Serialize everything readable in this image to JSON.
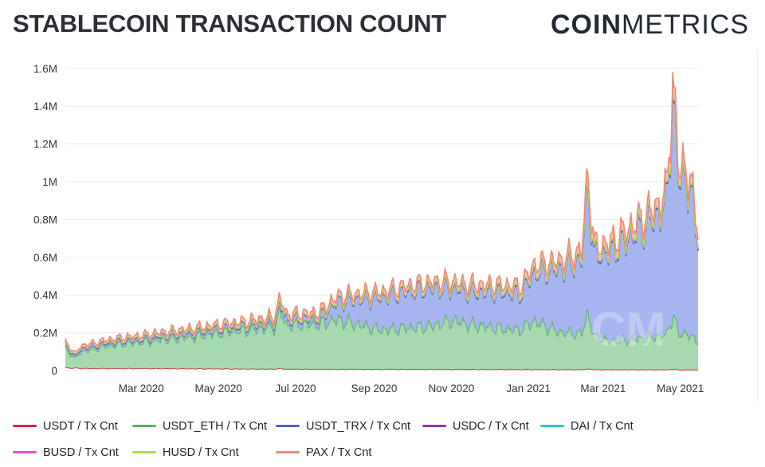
{
  "header": {
    "title": "STABLECOIN TRANSACTION COUNT",
    "brand_bold": "COIN",
    "brand_light": "METRICS"
  },
  "colors": {
    "USDT": "#d7263d",
    "USDT_ETH": "#52b45c",
    "USDT_TRX": "#4b63d8",
    "USDC": "#9b2fb8",
    "DAI": "#2cc4c4",
    "BUSD": "#e84fd0",
    "HUSD": "#a9de3a",
    "PAX": "#f08a78",
    "fill_eth": "#9fd6a8",
    "fill_trx": "#9fb0ee",
    "fill_pax": "#f3b7aa"
  },
  "legend": [
    {
      "key": "USDT",
      "label": "USDT / Tx Cnt"
    },
    {
      "key": "USDT_ETH",
      "label": "USDT_ETH / Tx Cnt"
    },
    {
      "key": "USDT_TRX",
      "label": "USDT_TRX / Tx Cnt"
    },
    {
      "key": "USDC",
      "label": "USDC / Tx Cnt"
    },
    {
      "key": "DAI",
      "label": "DAI / Tx Cnt"
    },
    {
      "key": "BUSD",
      "label": "BUSD / Tx Cnt"
    },
    {
      "key": "HUSD",
      "label": "HUSD / Tx Cnt"
    },
    {
      "key": "PAX",
      "label": "PAX / Tx Cnt"
    }
  ],
  "chart_data": {
    "type": "area",
    "stacked": true,
    "title": "STABLECOIN TRANSACTION COUNT",
    "xlabel": "",
    "ylabel": "",
    "ylim": [
      0,
      1650000
    ],
    "y_ticks": [
      {
        "value": 0,
        "label": "0"
      },
      {
        "value": 200000,
        "label": "0.2M"
      },
      {
        "value": 400000,
        "label": "0.4M"
      },
      {
        "value": 600000,
        "label": "0.6M"
      },
      {
        "value": 800000,
        "label": "0.8M"
      },
      {
        "value": 1000000,
        "label": "1M"
      },
      {
        "value": 1200000,
        "label": "1.2M"
      },
      {
        "value": 1400000,
        "label": "1.4M"
      },
      {
        "value": 1600000,
        "label": "1.6M"
      }
    ],
    "x_range_days": [
      0,
      500
    ],
    "x_ticks": [
      {
        "day": 60,
        "label": "Mar 2020"
      },
      {
        "day": 121,
        "label": "May 2020"
      },
      {
        "day": 182,
        "label": "Jul 2020"
      },
      {
        "day": 244,
        "label": "Sep 2020"
      },
      {
        "day": 305,
        "label": "Nov 2020"
      },
      {
        "day": 366,
        "label": "Jan 2021"
      },
      {
        "day": 425,
        "label": "Mar 2021"
      },
      {
        "day": 486,
        "label": "May 2021"
      }
    ],
    "grid": true,
    "legend_position": "bottom",
    "watermark": "CM",
    "series": [
      {
        "name": "USDT / Tx Cnt",
        "key": "USDT",
        "x": [
          0,
          20,
          60,
          120,
          200,
          300,
          400,
          500
        ],
        "values": [
          15000,
          12000,
          12000,
          10000,
          8000,
          7000,
          6000,
          5000
        ]
      },
      {
        "name": "USDT_ETH / Tx Cnt",
        "key": "USDT_ETH",
        "x": [
          0,
          8,
          12,
          30,
          45,
          60,
          80,
          100,
          120,
          140,
          160,
          180,
          200,
          215,
          230,
          250,
          270,
          290,
          305,
          320,
          340,
          360,
          370,
          390,
          410,
          430,
          450,
          470,
          490,
          500
        ],
        "values": [
          100000,
          50000,
          85000,
          115000,
          130000,
          140000,
          155000,
          170000,
          190000,
          205000,
          220000,
          235000,
          240000,
          265000,
          240000,
          210000,
          220000,
          230000,
          260000,
          240000,
          220000,
          210000,
          260000,
          200000,
          190000,
          150000,
          160000,
          180000,
          195000,
          150000
        ]
      },
      {
        "name": "USDT_TRX / Tx Cnt",
        "key": "USDT_TRX",
        "x": [
          0,
          8,
          12,
          30,
          45,
          60,
          80,
          100,
          120,
          140,
          160,
          180,
          200,
          215,
          230,
          250,
          270,
          290,
          305,
          320,
          340,
          360,
          370,
          390,
          410,
          430,
          450,
          470,
          490,
          500
        ],
        "values": [
          20000,
          10000,
          15000,
          15000,
          15000,
          15000,
          20000,
          20000,
          20000,
          20000,
          25000,
          30000,
          30000,
          90000,
          130000,
          170000,
          190000,
          200000,
          170000,
          170000,
          190000,
          190000,
          250000,
          330000,
          400000,
          470000,
          560000,
          650000,
          850000,
          570000
        ]
      },
      {
        "name": "USDC / Tx Cnt",
        "key": "USDC",
        "x": [
          0,
          250,
          500
        ],
        "values": [
          3000,
          4000,
          6000
        ]
      },
      {
        "name": "DAI / Tx Cnt",
        "key": "DAI",
        "x": [
          0,
          250,
          500
        ],
        "values": [
          2000,
          2000,
          3000
        ]
      },
      {
        "name": "BUSD / Tx Cnt",
        "key": "BUSD",
        "x": [
          0,
          250,
          500
        ],
        "values": [
          1000,
          2000,
          3000
        ]
      },
      {
        "name": "HUSD / Tx Cnt",
        "key": "HUSD",
        "x": [
          0,
          250,
          500
        ],
        "values": [
          500,
          1000,
          2000
        ]
      },
      {
        "name": "PAX / Tx Cnt",
        "key": "PAX",
        "x": [
          0,
          100,
          200,
          300,
          400,
          500
        ],
        "values": [
          10000,
          15000,
          20000,
          25000,
          35000,
          45000
        ]
      }
    ],
    "peaks": [
      {
        "day": 480,
        "total": 1580000
      },
      {
        "day": 413,
        "total": 1040000
      },
      {
        "day": 170,
        "total": 385000
      }
    ]
  }
}
